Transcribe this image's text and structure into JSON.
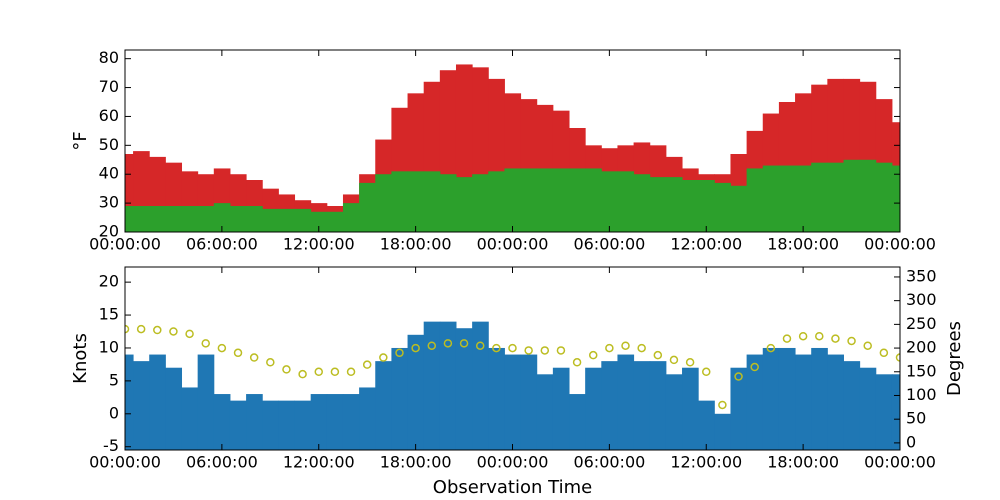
{
  "chart_data": [
    {
      "type": "bar",
      "ylabel": "°F",
      "x": [
        0,
        1,
        2,
        3,
        4,
        5,
        6,
        7,
        8,
        9,
        10,
        11,
        12,
        13,
        14,
        15,
        16,
        17,
        18,
        19,
        20,
        21,
        22,
        23,
        24,
        25,
        26,
        27,
        28,
        29,
        30,
        31,
        32,
        33,
        34,
        35,
        36,
        37,
        38,
        39,
        40,
        41,
        42,
        43,
        44,
        45,
        46,
        47,
        48
      ],
      "xlim": [
        0,
        48
      ],
      "xticks": [
        {
          "value": 0,
          "label": "00:00:00"
        },
        {
          "value": 6,
          "label": "06:00:00"
        },
        {
          "value": 12,
          "label": "12:00:00"
        },
        {
          "value": 18,
          "label": "18:00:00"
        },
        {
          "value": 24,
          "label": "00:00:00"
        },
        {
          "value": 30,
          "label": "06:00:00"
        },
        {
          "value": 36,
          "label": "12:00:00"
        },
        {
          "value": 42,
          "label": "18:00:00"
        },
        {
          "value": 48,
          "label": "00:00:00"
        }
      ],
      "ylim": [
        20,
        83
      ],
      "yticks": [
        20,
        30,
        40,
        50,
        60,
        70,
        80
      ],
      "series": [
        {
          "color": "#d62728",
          "values": [
            47,
            48,
            46,
            44,
            41,
            40,
            42,
            40,
            38,
            35,
            33,
            31,
            30,
            29,
            33,
            40,
            52,
            63,
            68,
            72,
            76,
            78,
            77,
            73,
            68,
            66,
            64,
            62,
            56,
            50,
            49,
            50,
            51,
            50,
            46,
            42,
            40,
            40,
            47,
            55,
            61,
            65,
            68,
            71,
            73,
            73,
            72,
            66,
            58
          ]
        },
        {
          "color": "#2ca02c",
          "values": [
            29,
            29,
            29,
            29,
            29,
            29,
            30,
            29,
            29,
            28,
            28,
            28,
            27,
            27,
            30,
            37,
            40,
            41,
            41,
            41,
            40,
            39,
            40,
            41,
            42,
            42,
            42,
            42,
            42,
            42,
            41,
            41,
            40,
            39,
            39,
            38,
            38,
            37,
            36,
            42,
            43,
            43,
            43,
            44,
            44,
            45,
            45,
            44,
            43
          ]
        }
      ]
    },
    {
      "type": "bar",
      "ylabel": "Knots",
      "y2label": "Degrees",
      "xlabel": "Observation Time",
      "x": [
        0,
        1,
        2,
        3,
        4,
        5,
        6,
        7,
        8,
        9,
        10,
        11,
        12,
        13,
        14,
        15,
        16,
        17,
        18,
        19,
        20,
        21,
        22,
        23,
        24,
        25,
        26,
        27,
        28,
        29,
        30,
        31,
        32,
        33,
        34,
        35,
        36,
        37,
        38,
        39,
        40,
        41,
        42,
        43,
        44,
        45,
        46,
        47,
        48
      ],
      "xlim": [
        0,
        48
      ],
      "xticks": [
        {
          "value": 0,
          "label": "00:00:00"
        },
        {
          "value": 6,
          "label": "06:00:00"
        },
        {
          "value": 12,
          "label": "12:00:00"
        },
        {
          "value": 18,
          "label": "18:00:00"
        },
        {
          "value": 24,
          "label": "00:00:00"
        },
        {
          "value": 30,
          "label": "06:00:00"
        },
        {
          "value": 36,
          "label": "12:00:00"
        },
        {
          "value": 42,
          "label": "18:00:00"
        },
        {
          "value": 48,
          "label": "00:00:00"
        }
      ],
      "ylim": [
        -5.5,
        22.3
      ],
      "yticks": [
        -5,
        0,
        5,
        10,
        15,
        20
      ],
      "y2lim": [
        -15,
        371
      ],
      "y2ticks": [
        0,
        50,
        100,
        150,
        200,
        250,
        300,
        350
      ],
      "series": [
        {
          "color": "#1f77b4",
          "values": [
            9,
            8,
            9,
            7,
            4,
            9,
            3,
            2,
            3,
            2,
            2,
            2,
            3,
            3,
            3,
            4,
            8,
            10,
            12,
            14,
            14,
            13,
            14,
            10,
            9,
            9,
            6,
            7,
            3,
            7,
            8,
            9,
            8,
            8,
            6,
            7,
            2,
            0,
            7,
            9,
            10,
            10,
            9,
            10,
            9,
            8,
            7,
            6,
            6
          ]
        },
        {
          "type": "scatter",
          "axis": "y2",
          "color": "#bcbd22",
          "values": [
            240,
            240,
            238,
            235,
            230,
            210,
            200,
            190,
            180,
            170,
            155,
            145,
            150,
            150,
            150,
            165,
            180,
            190,
            200,
            205,
            210,
            210,
            205,
            200,
            200,
            195,
            195,
            195,
            170,
            185,
            200,
            205,
            200,
            185,
            175,
            170,
            150,
            80,
            140,
            160,
            200,
            220,
            225,
            225,
            220,
            215,
            205,
            190,
            180
          ]
        }
      ]
    }
  ]
}
